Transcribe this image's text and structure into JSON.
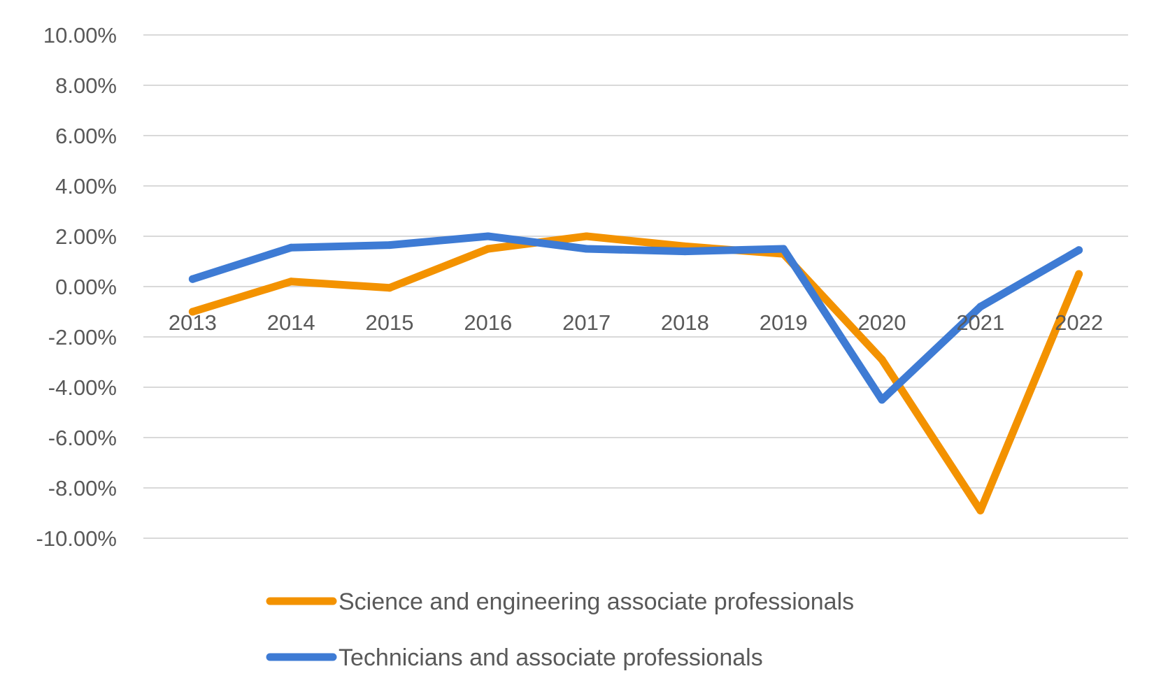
{
  "chart_data": {
    "type": "line",
    "title": "",
    "xlabel": "",
    "ylabel": "",
    "categories": [
      "2013",
      "2014",
      "2015",
      "2016",
      "2017",
      "2018",
      "2019",
      "2020",
      "2021",
      "2022"
    ],
    "ylim": [
      -10,
      10
    ],
    "ytick_values": [
      10,
      8,
      6,
      4,
      2,
      0,
      -2,
      -4,
      -6,
      -8,
      -10
    ],
    "ytick_labels": [
      "10.00%",
      "8.00%",
      "6.00%",
      "4.00%",
      "2.00%",
      "0.00%",
      "-2.00%",
      "-4.00%",
      "-6.00%",
      "-8.00%",
      "-10.00%"
    ],
    "grid": true,
    "legend_position": "bottom",
    "series": [
      {
        "name": "Science and engineering associate professionals",
        "color": "#F39200",
        "values": [
          -1.0,
          0.2,
          -0.05,
          1.5,
          2.0,
          1.6,
          1.3,
          -2.9,
          -8.9,
          0.5
        ]
      },
      {
        "name": "Technicians and associate professionals",
        "color": "#3E7BD4",
        "values": [
          0.3,
          1.55,
          1.65,
          2.0,
          1.5,
          1.4,
          1.5,
          -4.5,
          -0.8,
          1.45
        ]
      }
    ]
  }
}
